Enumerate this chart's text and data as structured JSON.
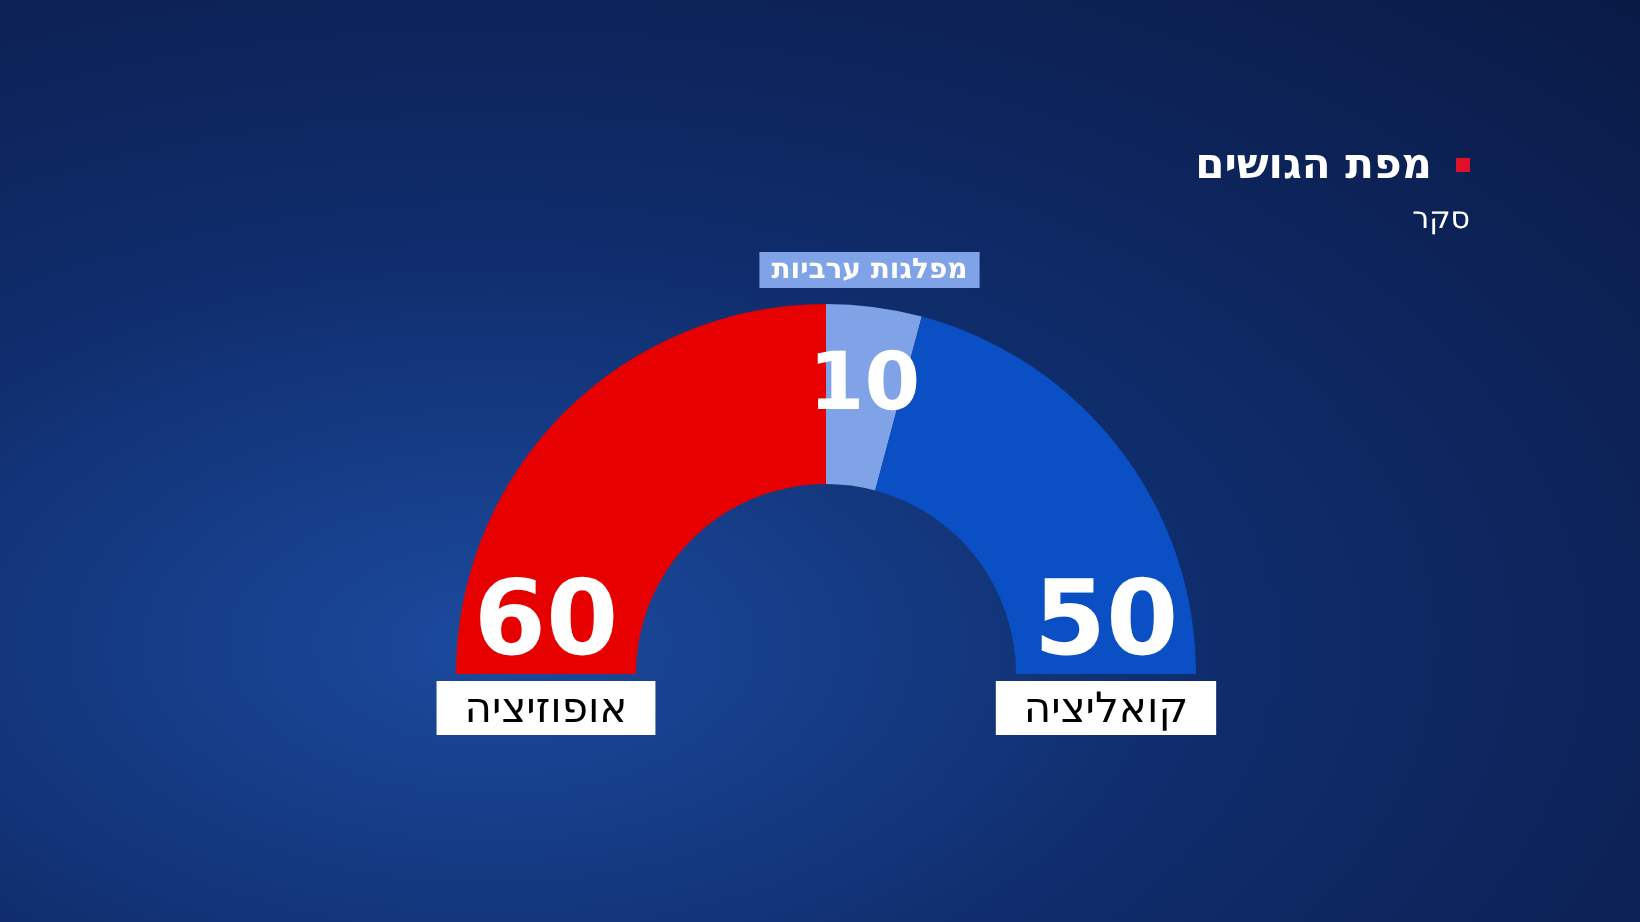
{
  "chart_data": {
    "type": "donut",
    "title": "מפת הגושים",
    "subtitle": "סקר",
    "categories": [
      "אופוזיציה",
      "מפלגות ערביות",
      "קואליציה"
    ],
    "values": [
      60,
      10,
      50
    ],
    "colors": [
      "#e60000",
      "#7fa3e6",
      "#0a4fc4"
    ],
    "data_labels": true,
    "legend": false
  }
}
